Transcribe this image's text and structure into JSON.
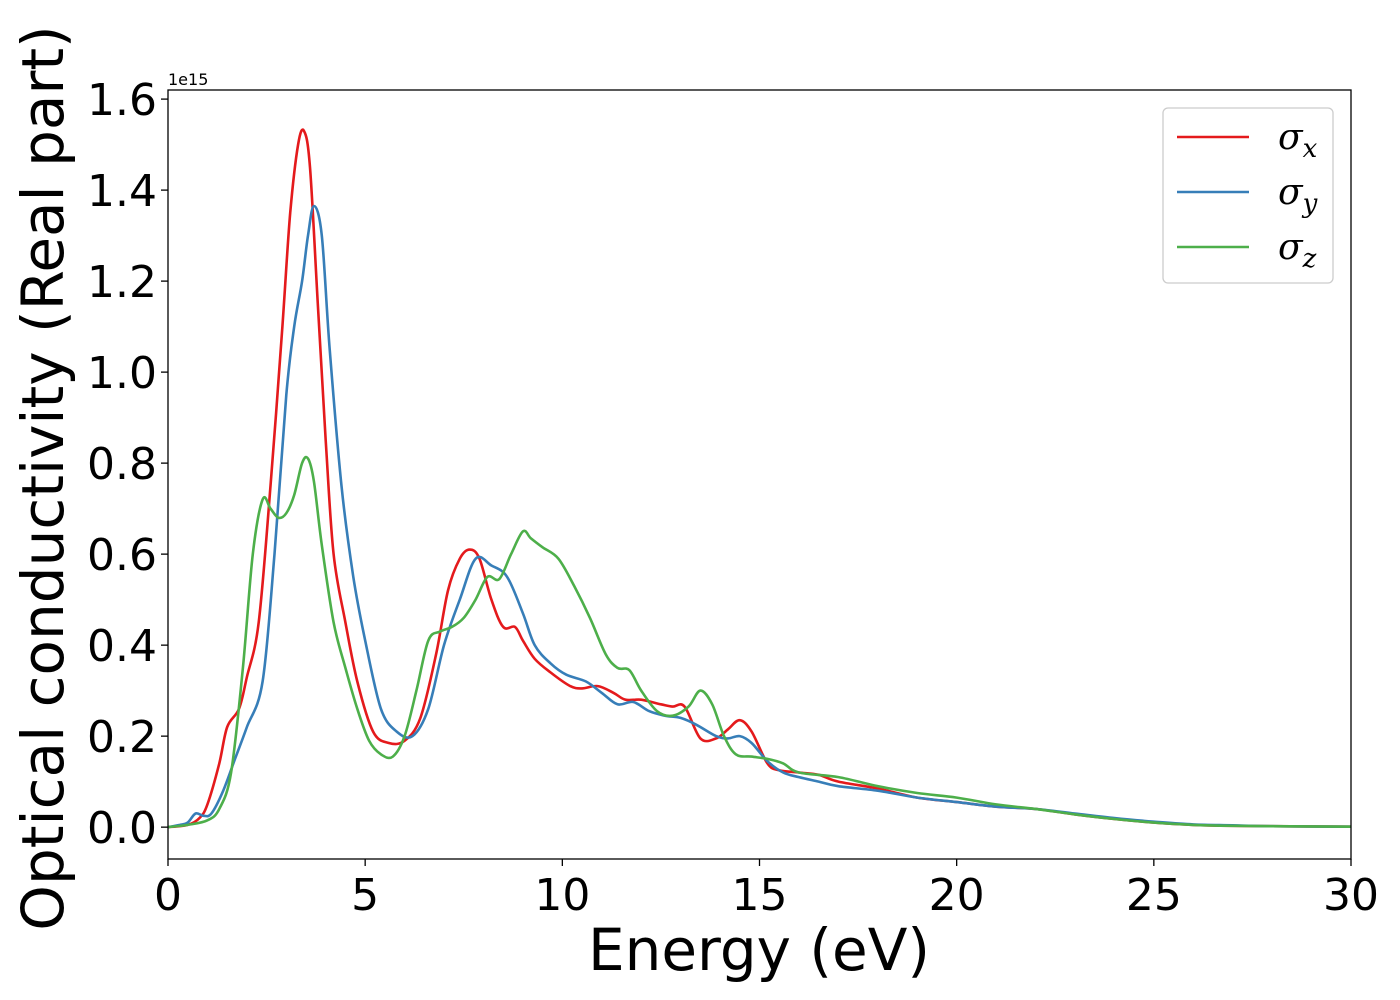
{
  "chart_data": {
    "type": "line",
    "title": "",
    "xlabel": "Energy (eV)",
    "ylabel": "Optical conductivity (Real part)",
    "y_offset_label": "1e15",
    "xlim": [
      0,
      30
    ],
    "ylim": [
      -0.07,
      1.62
    ],
    "xticks": [
      0,
      5,
      10,
      15,
      20,
      25,
      30
    ],
    "xtick_labels": [
      "0",
      "5",
      "10",
      "15",
      "20",
      "25",
      "30"
    ],
    "yticks": [
      0.0,
      0.2,
      0.4,
      0.6,
      0.8,
      1.0,
      1.2,
      1.4,
      1.6
    ],
    "ytick_labels": [
      "0.0",
      "0.2",
      "0.4",
      "0.6",
      "0.8",
      "1.0",
      "1.2",
      "1.4",
      "1.6"
    ],
    "grid": false,
    "legend_position": "top-right",
    "series": [
      {
        "name": "σx",
        "legend_base": "σ",
        "legend_sub": "x",
        "color": "#e41a1c",
        "x": [
          0,
          0.5,
          0.8,
          1.0,
          1.3,
          1.5,
          1.8,
          2.0,
          2.3,
          2.6,
          2.9,
          3.1,
          3.3,
          3.45,
          3.6,
          3.8,
          4.0,
          4.2,
          4.5,
          4.8,
          5.2,
          5.6,
          6.0,
          6.4,
          6.8,
          7.1,
          7.4,
          7.65,
          7.9,
          8.2,
          8.5,
          8.8,
          9.0,
          9.3,
          9.7,
          10.2,
          10.5,
          10.9,
          11.3,
          11.6,
          12.0,
          12.5,
          12.8,
          13.1,
          13.5,
          13.9,
          14.2,
          14.5,
          14.8,
          15.2,
          15.5,
          16.0,
          16.5,
          17.0,
          18.0,
          19.0,
          20.0,
          21.0,
          22.0,
          23.0,
          24.0,
          25.0,
          26.0,
          27.0,
          28.0,
          30.0
        ],
        "values": [
          0.0,
          0.005,
          0.02,
          0.05,
          0.14,
          0.22,
          0.26,
          0.33,
          0.45,
          0.75,
          1.1,
          1.35,
          1.5,
          1.53,
          1.45,
          1.15,
          0.85,
          0.6,
          0.45,
          0.32,
          0.21,
          0.185,
          0.19,
          0.24,
          0.38,
          0.52,
          0.59,
          0.61,
          0.59,
          0.5,
          0.44,
          0.44,
          0.41,
          0.37,
          0.34,
          0.31,
          0.305,
          0.31,
          0.295,
          0.28,
          0.28,
          0.27,
          0.265,
          0.265,
          0.195,
          0.195,
          0.215,
          0.235,
          0.21,
          0.14,
          0.125,
          0.12,
          0.115,
          0.1,
          0.085,
          0.065,
          0.055,
          0.045,
          0.04,
          0.028,
          0.018,
          0.01,
          0.005,
          0.003,
          0.002,
          0.001
        ]
      },
      {
        "name": "σy",
        "legend_base": "σ",
        "legend_sub": "y",
        "color": "#377eb8",
        "x": [
          0,
          0.3,
          0.5,
          0.7,
          0.9,
          1.1,
          1.4,
          1.7,
          2.0,
          2.4,
          2.7,
          3.0,
          3.2,
          3.4,
          3.55,
          3.7,
          3.9,
          4.1,
          4.4,
          4.7,
          5.0,
          5.4,
          5.8,
          6.2,
          6.6,
          7.0,
          7.4,
          7.8,
          8.2,
          8.6,
          9.0,
          9.3,
          9.7,
          10.1,
          10.6,
          11.0,
          11.4,
          11.8,
          12.2,
          12.6,
          13.0,
          13.4,
          13.9,
          14.2,
          14.5,
          14.8,
          15.2,
          15.6,
          16.0,
          16.5,
          17.0,
          18.0,
          19.0,
          20.0,
          21.0,
          22.0,
          23.0,
          24.0,
          25.0,
          26.0,
          27.0,
          28.0,
          30.0
        ],
        "values": [
          0.0,
          0.005,
          0.01,
          0.03,
          0.025,
          0.03,
          0.08,
          0.15,
          0.22,
          0.32,
          0.6,
          0.95,
          1.1,
          1.2,
          1.3,
          1.365,
          1.3,
          1.05,
          0.75,
          0.55,
          0.41,
          0.26,
          0.21,
          0.2,
          0.26,
          0.4,
          0.5,
          0.59,
          0.575,
          0.55,
          0.47,
          0.4,
          0.36,
          0.335,
          0.32,
          0.295,
          0.27,
          0.275,
          0.255,
          0.245,
          0.24,
          0.225,
          0.2,
          0.195,
          0.2,
          0.185,
          0.145,
          0.12,
          0.11,
          0.1,
          0.09,
          0.08,
          0.065,
          0.055,
          0.045,
          0.04,
          0.03,
          0.02,
          0.012,
          0.006,
          0.004,
          0.002,
          0.001
        ]
      },
      {
        "name": "σz",
        "legend_base": "σ",
        "legend_sub": "z",
        "color": "#4daf4a",
        "x": [
          0,
          0.5,
          1.0,
          1.3,
          1.6,
          1.9,
          2.15,
          2.4,
          2.6,
          2.8,
          3.0,
          3.2,
          3.4,
          3.55,
          3.7,
          3.9,
          4.2,
          4.5,
          4.8,
          5.1,
          5.4,
          5.7,
          6.0,
          6.3,
          6.6,
          6.9,
          7.2,
          7.5,
          7.8,
          8.1,
          8.4,
          8.7,
          9.0,
          9.2,
          9.5,
          9.9,
          10.3,
          10.7,
          11.1,
          11.4,
          11.7,
          12.0,
          12.4,
          12.8,
          13.2,
          13.5,
          13.8,
          14.1,
          14.4,
          14.8,
          15.2,
          15.6,
          16.0,
          17.0,
          18.0,
          19.0,
          20.0,
          21.0,
          22.0,
          23.0,
          24.0,
          25.0,
          26.0,
          27.0,
          28.0,
          30.0
        ],
        "values": [
          0.0,
          0.005,
          0.015,
          0.04,
          0.12,
          0.35,
          0.6,
          0.72,
          0.7,
          0.68,
          0.69,
          0.73,
          0.8,
          0.81,
          0.76,
          0.62,
          0.45,
          0.35,
          0.26,
          0.19,
          0.16,
          0.155,
          0.2,
          0.3,
          0.41,
          0.43,
          0.44,
          0.46,
          0.5,
          0.55,
          0.545,
          0.6,
          0.65,
          0.635,
          0.615,
          0.59,
          0.53,
          0.46,
          0.38,
          0.35,
          0.345,
          0.3,
          0.255,
          0.245,
          0.265,
          0.3,
          0.27,
          0.2,
          0.16,
          0.155,
          0.15,
          0.14,
          0.12,
          0.11,
          0.09,
          0.075,
          0.065,
          0.05,
          0.04,
          0.028,
          0.018,
          0.01,
          0.005,
          0.003,
          0.002,
          0.001
        ]
      }
    ]
  }
}
